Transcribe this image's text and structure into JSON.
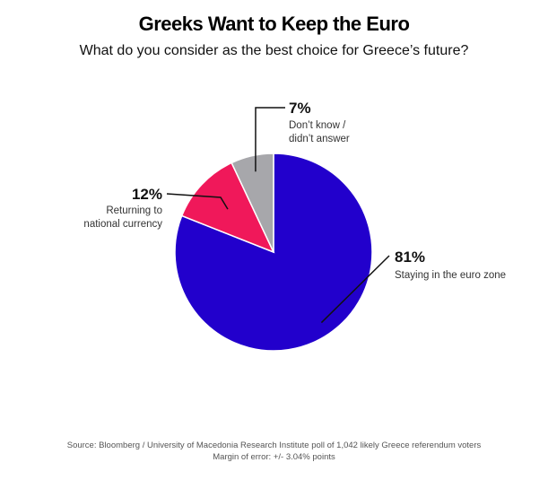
{
  "title": "Greeks Want to Keep the Euro",
  "subtitle": "What do you consider as the best choice for Greece’s future?",
  "source_line1": "Source: Bloomberg / University of Macedonia Research Institute poll of 1,042 likely Greece referendum voters",
  "source_line2": "Margin of error: +/- 3.04% points",
  "chart_data": {
    "type": "pie",
    "slices": [
      {
        "label_lines": [
          "Staying in the euro zone"
        ],
        "pct_label": "81%",
        "value": 81,
        "color": "#2200cc"
      },
      {
        "label_lines": [
          "Returning to",
          "national currency"
        ],
        "pct_label": "12%",
        "value": 12,
        "color": "#f0185a"
      },
      {
        "label_lines": [
          "Don’t know /",
          "didn’t answer"
        ],
        "pct_label": "7%",
        "value": 7,
        "color": "#a7a7ab"
      }
    ]
  }
}
